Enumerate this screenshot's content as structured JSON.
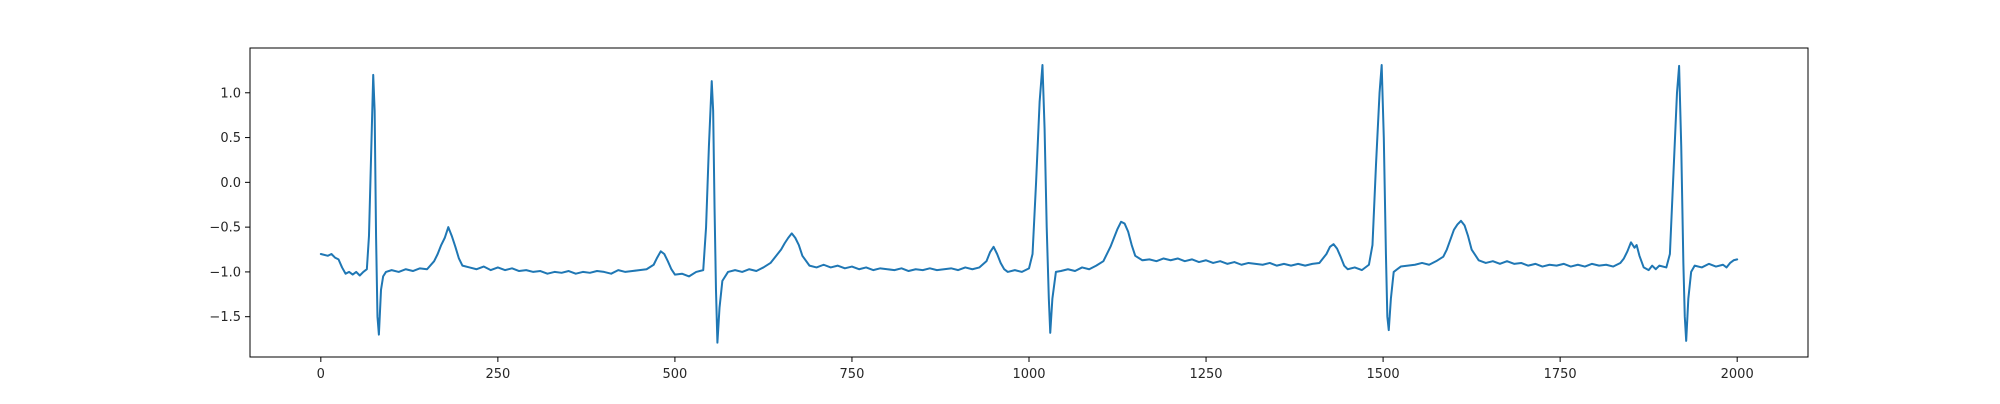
{
  "chart_data": {
    "type": "line",
    "title": "",
    "xlabel": "",
    "ylabel": "",
    "xlim": [
      -100,
      2100
    ],
    "ylim": [
      -1.95,
      1.5
    ],
    "x_ticks": [
      0,
      250,
      500,
      750,
      1000,
      1250,
      1500,
      1750,
      2000
    ],
    "y_ticks": [
      -1.5,
      -1.0,
      -0.5,
      0.0,
      0.5,
      1.0
    ],
    "y_tick_labels": [
      "−1.5",
      "−1.0",
      "−0.5",
      "0.0",
      "0.5",
      "1.0"
    ],
    "grid": false,
    "legend": "none",
    "series": [
      {
        "color": "#1f77b4",
        "points": [
          [
            0,
            -0.8
          ],
          [
            10,
            -0.82
          ],
          [
            15,
            -0.8
          ],
          [
            20,
            -0.84
          ],
          [
            25,
            -0.86
          ],
          [
            30,
            -0.95
          ],
          [
            35,
            -1.02
          ],
          [
            40,
            -1.0
          ],
          [
            45,
            -1.03
          ],
          [
            50,
            -1.0
          ],
          [
            55,
            -1.04
          ],
          [
            60,
            -1.0
          ],
          [
            65,
            -0.97
          ],
          [
            68,
            -0.6
          ],
          [
            71,
            0.3
          ],
          [
            74,
            1.2
          ],
          [
            76,
            0.8
          ],
          [
            78,
            -0.6
          ],
          [
            80,
            -1.5
          ],
          [
            82,
            -1.7
          ],
          [
            85,
            -1.2
          ],
          [
            88,
            -1.05
          ],
          [
            92,
            -1.0
          ],
          [
            100,
            -0.98
          ],
          [
            110,
            -1.0
          ],
          [
            120,
            -0.97
          ],
          [
            130,
            -0.99
          ],
          [
            140,
            -0.96
          ],
          [
            150,
            -0.97
          ],
          [
            160,
            -0.88
          ],
          [
            165,
            -0.8
          ],
          [
            170,
            -0.7
          ],
          [
            175,
            -0.62
          ],
          [
            180,
            -0.5
          ],
          [
            185,
            -0.6
          ],
          [
            190,
            -0.72
          ],
          [
            195,
            -0.85
          ],
          [
            200,
            -0.93
          ],
          [
            210,
            -0.95
          ],
          [
            220,
            -0.97
          ],
          [
            230,
            -0.94
          ],
          [
            240,
            -0.98
          ],
          [
            250,
            -0.95
          ],
          [
            260,
            -0.98
          ],
          [
            270,
            -0.96
          ],
          [
            280,
            -0.99
          ],
          [
            290,
            -0.98
          ],
          [
            300,
            -1.0
          ],
          [
            310,
            -0.99
          ],
          [
            320,
            -1.02
          ],
          [
            330,
            -1.0
          ],
          [
            340,
            -1.01
          ],
          [
            350,
            -0.99
          ],
          [
            360,
            -1.02
          ],
          [
            370,
            -1.0
          ],
          [
            380,
            -1.01
          ],
          [
            390,
            -0.99
          ],
          [
            400,
            -1.0
          ],
          [
            410,
            -1.02
          ],
          [
            420,
            -0.98
          ],
          [
            430,
            -1.0
          ],
          [
            440,
            -0.99
          ],
          [
            450,
            -0.98
          ],
          [
            460,
            -0.97
          ],
          [
            470,
            -0.92
          ],
          [
            475,
            -0.84
          ],
          [
            480,
            -0.77
          ],
          [
            485,
            -0.8
          ],
          [
            490,
            -0.88
          ],
          [
            495,
            -0.97
          ],
          [
            500,
            -1.03
          ],
          [
            510,
            -1.02
          ],
          [
            520,
            -1.05
          ],
          [
            530,
            -1.0
          ],
          [
            540,
            -0.98
          ],
          [
            544,
            -0.5
          ],
          [
            548,
            0.4
          ],
          [
            552,
            1.13
          ],
          [
            554,
            0.8
          ],
          [
            556,
            -0.3
          ],
          [
            558,
            -1.2
          ],
          [
            560,
            -1.79
          ],
          [
            563,
            -1.4
          ],
          [
            567,
            -1.1
          ],
          [
            575,
            -1.0
          ],
          [
            585,
            -0.98
          ],
          [
            595,
            -1.0
          ],
          [
            605,
            -0.97
          ],
          [
            615,
            -0.99
          ],
          [
            625,
            -0.95
          ],
          [
            635,
            -0.9
          ],
          [
            645,
            -0.8
          ],
          [
            650,
            -0.75
          ],
          [
            655,
            -0.68
          ],
          [
            660,
            -0.62
          ],
          [
            665,
            -0.57
          ],
          [
            670,
            -0.62
          ],
          [
            675,
            -0.7
          ],
          [
            680,
            -0.82
          ],
          [
            690,
            -0.93
          ],
          [
            700,
            -0.95
          ],
          [
            710,
            -0.92
          ],
          [
            720,
            -0.95
          ],
          [
            730,
            -0.93
          ],
          [
            740,
            -0.96
          ],
          [
            750,
            -0.94
          ],
          [
            760,
            -0.97
          ],
          [
            770,
            -0.95
          ],
          [
            780,
            -0.98
          ],
          [
            790,
            -0.96
          ],
          [
            800,
            -0.97
          ],
          [
            810,
            -0.98
          ],
          [
            820,
            -0.96
          ],
          [
            830,
            -0.99
          ],
          [
            840,
            -0.97
          ],
          [
            850,
            -0.98
          ],
          [
            860,
            -0.96
          ],
          [
            870,
            -0.98
          ],
          [
            880,
            -0.97
          ],
          [
            890,
            -0.96
          ],
          [
            900,
            -0.98
          ],
          [
            910,
            -0.95
          ],
          [
            920,
            -0.97
          ],
          [
            930,
            -0.95
          ],
          [
            940,
            -0.88
          ],
          [
            945,
            -0.78
          ],
          [
            950,
            -0.72
          ],
          [
            955,
            -0.8
          ],
          [
            960,
            -0.9
          ],
          [
            965,
            -0.97
          ],
          [
            970,
            -1.0
          ],
          [
            980,
            -0.98
          ],
          [
            990,
            -1.0
          ],
          [
            1000,
            -0.96
          ],
          [
            1005,
            -0.8
          ],
          [
            1010,
            0.0
          ],
          [
            1015,
            0.9
          ],
          [
            1019,
            1.31
          ],
          [
            1022,
            0.6
          ],
          [
            1025,
            -0.5
          ],
          [
            1028,
            -1.3
          ],
          [
            1030,
            -1.68
          ],
          [
            1033,
            -1.3
          ],
          [
            1038,
            -1.0
          ],
          [
            1045,
            -0.99
          ],
          [
            1055,
            -0.97
          ],
          [
            1065,
            -0.99
          ],
          [
            1075,
            -0.95
          ],
          [
            1085,
            -0.97
          ],
          [
            1095,
            -0.93
          ],
          [
            1105,
            -0.88
          ],
          [
            1115,
            -0.72
          ],
          [
            1120,
            -0.62
          ],
          [
            1125,
            -0.52
          ],
          [
            1130,
            -0.44
          ],
          [
            1135,
            -0.46
          ],
          [
            1140,
            -0.55
          ],
          [
            1145,
            -0.7
          ],
          [
            1150,
            -0.82
          ],
          [
            1160,
            -0.87
          ],
          [
            1170,
            -0.86
          ],
          [
            1180,
            -0.88
          ],
          [
            1190,
            -0.85
          ],
          [
            1200,
            -0.87
          ],
          [
            1210,
            -0.85
          ],
          [
            1220,
            -0.88
          ],
          [
            1230,
            -0.86
          ],
          [
            1240,
            -0.89
          ],
          [
            1250,
            -0.87
          ],
          [
            1260,
            -0.9
          ],
          [
            1270,
            -0.88
          ],
          [
            1280,
            -0.91
          ],
          [
            1290,
            -0.89
          ],
          [
            1300,
            -0.92
          ],
          [
            1310,
            -0.9
          ],
          [
            1320,
            -0.91
          ],
          [
            1330,
            -0.92
          ],
          [
            1340,
            -0.9
          ],
          [
            1350,
            -0.93
          ],
          [
            1360,
            -0.91
          ],
          [
            1370,
            -0.93
          ],
          [
            1380,
            -0.91
          ],
          [
            1390,
            -0.93
          ],
          [
            1400,
            -0.91
          ],
          [
            1410,
            -0.9
          ],
          [
            1420,
            -0.8
          ],
          [
            1425,
            -0.72
          ],
          [
            1430,
            -0.69
          ],
          [
            1435,
            -0.74
          ],
          [
            1440,
            -0.83
          ],
          [
            1445,
            -0.93
          ],
          [
            1450,
            -0.97
          ],
          [
            1460,
            -0.95
          ],
          [
            1470,
            -0.98
          ],
          [
            1480,
            -0.92
          ],
          [
            1485,
            -0.7
          ],
          [
            1490,
            0.2
          ],
          [
            1495,
            1.0
          ],
          [
            1498,
            1.31
          ],
          [
            1501,
            0.5
          ],
          [
            1504,
            -0.8
          ],
          [
            1506,
            -1.5
          ],
          [
            1508,
            -1.65
          ],
          [
            1511,
            -1.3
          ],
          [
            1515,
            -1.0
          ],
          [
            1525,
            -0.94
          ],
          [
            1535,
            -0.93
          ],
          [
            1545,
            -0.92
          ],
          [
            1555,
            -0.9
          ],
          [
            1565,
            -0.92
          ],
          [
            1575,
            -0.88
          ],
          [
            1585,
            -0.83
          ],
          [
            1590,
            -0.75
          ],
          [
            1595,
            -0.64
          ],
          [
            1600,
            -0.53
          ],
          [
            1605,
            -0.47
          ],
          [
            1610,
            -0.43
          ],
          [
            1615,
            -0.48
          ],
          [
            1620,
            -0.6
          ],
          [
            1625,
            -0.75
          ],
          [
            1635,
            -0.87
          ],
          [
            1645,
            -0.9
          ],
          [
            1655,
            -0.88
          ],
          [
            1665,
            -0.91
          ],
          [
            1675,
            -0.88
          ],
          [
            1685,
            -0.91
          ],
          [
            1695,
            -0.9
          ],
          [
            1705,
            -0.93
          ],
          [
            1715,
            -0.91
          ],
          [
            1725,
            -0.94
          ],
          [
            1735,
            -0.92
          ],
          [
            1745,
            -0.93
          ],
          [
            1755,
            -0.91
          ],
          [
            1765,
            -0.94
          ],
          [
            1775,
            -0.92
          ],
          [
            1785,
            -0.94
          ],
          [
            1795,
            -0.91
          ],
          [
            1805,
            -0.93
          ],
          [
            1815,
            -0.92
          ],
          [
            1825,
            -0.94
          ],
          [
            1835,
            -0.9
          ],
          [
            1840,
            -0.85
          ],
          [
            1845,
            -0.77
          ],
          [
            1850,
            -0.67
          ],
          [
            1855,
            -0.73
          ],
          [
            1858,
            -0.7
          ],
          [
            1862,
            -0.82
          ],
          [
            1868,
            -0.95
          ],
          [
            1875,
            -0.98
          ],
          [
            1880,
            -0.93
          ],
          [
            1885,
            -0.97
          ],
          [
            1890,
            -0.93
          ],
          [
            1900,
            -0.95
          ],
          [
            1905,
            -0.8
          ],
          [
            1910,
            0.1
          ],
          [
            1915,
            1.0
          ],
          [
            1918,
            1.3
          ],
          [
            1921,
            0.4
          ],
          [
            1924,
            -0.9
          ],
          [
            1926,
            -1.5
          ],
          [
            1928,
            -1.77
          ],
          [
            1931,
            -1.3
          ],
          [
            1935,
            -1.0
          ],
          [
            1940,
            -0.93
          ],
          [
            1950,
            -0.95
          ],
          [
            1960,
            -0.91
          ],
          [
            1970,
            -0.94
          ],
          [
            1980,
            -0.92
          ],
          [
            1985,
            -0.95
          ],
          [
            1990,
            -0.9
          ],
          [
            1995,
            -0.87
          ],
          [
            2000,
            -0.86
          ]
        ]
      }
    ]
  }
}
